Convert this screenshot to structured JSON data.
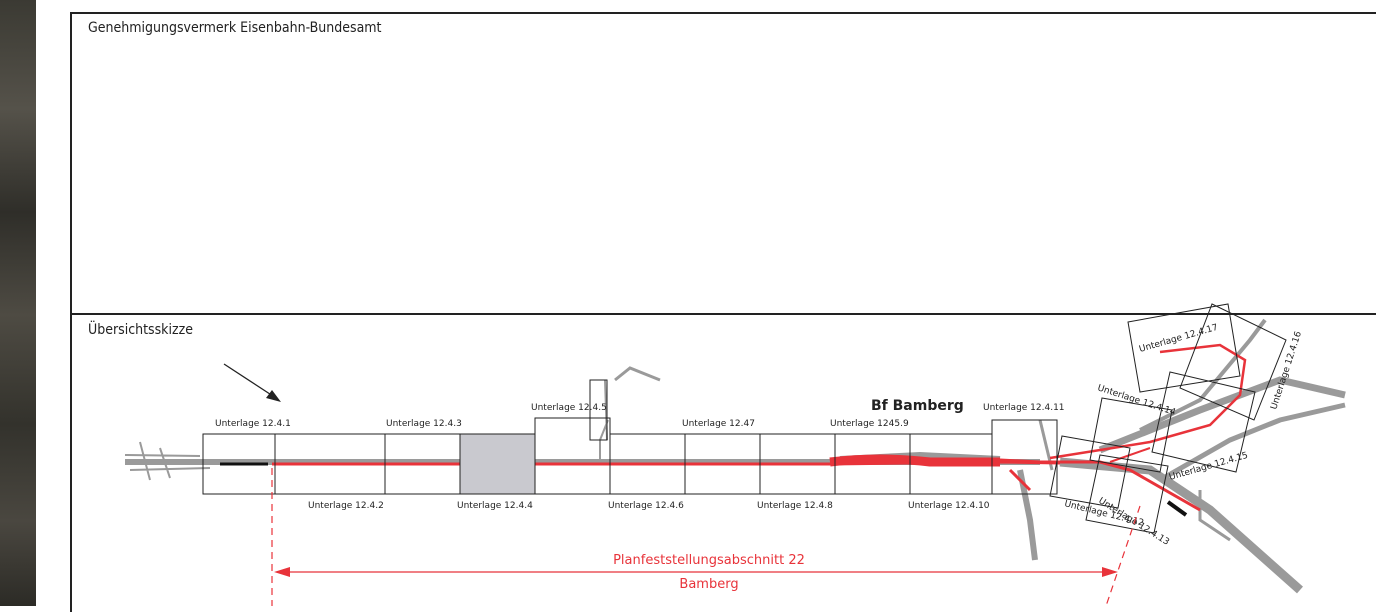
{
  "sections": {
    "approval_heading": "Genehmigungsvermerk Eisenbahn-Bundesamt",
    "overview_heading": "Übersichtsskizze"
  },
  "station_label": "Bf Bamberg",
  "section": {
    "line1": "Planfeststellungsabschnitt 22",
    "line2": "Bamberg"
  },
  "sheets": {
    "u1": "Unterlage 12.4.1",
    "u2": "Unterlage 12.4.2",
    "u3": "Unterlage 12.4.3",
    "u4": "Unterlage 12.4.4",
    "u5": "Unterlage 12.4.5",
    "u6": "Unterlage 12.4.6",
    "u7": "Unterlage 12.47",
    "u8": "Unterlage 12.4.8",
    "u9": "Unterlage 1245.9",
    "u10": "Unterlage 12.4.10",
    "u11": "Unterlage 12.4.11",
    "u12": "Unterlage 12.4.12",
    "u13": "Unterlage 12.4.13",
    "u14": "Unterlage 12.4.14",
    "u15": "Unterlage 12.4.15",
    "u16": "Unterlage 12.4.16",
    "u17": "Unterlage 12.4.17"
  },
  "colors": {
    "track_red": "#e8333a",
    "track_gray": "#9a9a9a",
    "highlight_sheet": "#c9c9cf"
  }
}
